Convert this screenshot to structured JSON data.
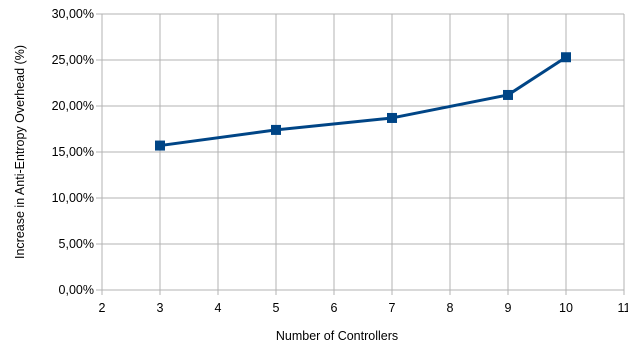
{
  "chart_data": {
    "type": "line",
    "title": "",
    "xlabel": "Number of Controllers",
    "ylabel": "Increase in Anti-Entropy Overhead (%)",
    "xlim": [
      2,
      11
    ],
    "ylim": [
      0,
      30
    ],
    "x_ticks": [
      2,
      3,
      4,
      5,
      6,
      7,
      8,
      9,
      10,
      11
    ],
    "y_ticks": [
      0,
      5,
      10,
      15,
      20,
      25,
      30
    ],
    "x_tick_labels": [
      "2",
      "3",
      "4",
      "5",
      "6",
      "7",
      "8",
      "9",
      "10",
      "11"
    ],
    "y_tick_labels": [
      "0,00%",
      "5,00%",
      "10,00%",
      "15,00%",
      "20,00%",
      "25,00%",
      "30,00%"
    ],
    "grid": true,
    "legend": "none",
    "series": [
      {
        "color": "#004586",
        "marker": "square",
        "x": [
          3,
          5,
          7,
          9,
          10
        ],
        "y": [
          15.7,
          17.4,
          18.7,
          21.2,
          25.3
        ]
      }
    ]
  }
}
